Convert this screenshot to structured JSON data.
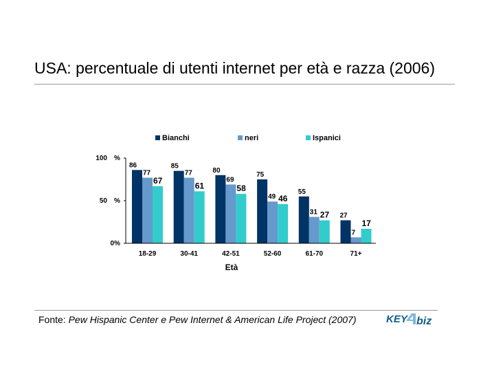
{
  "chart_data": {
    "type": "bar",
    "title": "USA: percentuale di utenti internet per età e razza (2006)",
    "xlabel": "Età",
    "ylabel": "",
    "categories": [
      "18-29",
      "30-41",
      "42-51",
      "52-60",
      "61-70",
      "71+"
    ],
    "series": [
      {
        "name": "Bianchi",
        "color": "#003366",
        "values": [
          86,
          85,
          80,
          75,
          55,
          27
        ]
      },
      {
        "name": "neri",
        "color": "#6699cc",
        "values": [
          77,
          77,
          69,
          49,
          31,
          7
        ]
      },
      {
        "name": "Ispanici",
        "color": "#33cccc",
        "values": [
          67,
          61,
          58,
          46,
          27,
          17
        ]
      }
    ],
    "ylim": [
      0,
      100
    ],
    "yticks": [
      {
        "value": 100,
        "label": "100",
        "unit": "%"
      },
      {
        "value": 50,
        "label": "50",
        "unit": "%"
      },
      {
        "value": 0,
        "label": "0%",
        "unit": ""
      }
    ],
    "legend_position": "top",
    "grid": false
  },
  "source": {
    "prefix": "Fonte: ",
    "text": "Pew Hispanic Center e Pew Internet & American Life Project (2007)"
  },
  "logo": {
    "text_part1": "KEY",
    "text_part2": "biz",
    "colors": {
      "key": "#0d5d8c",
      "four": "#7fb7d6",
      "biz": "#0d5d8c"
    }
  }
}
